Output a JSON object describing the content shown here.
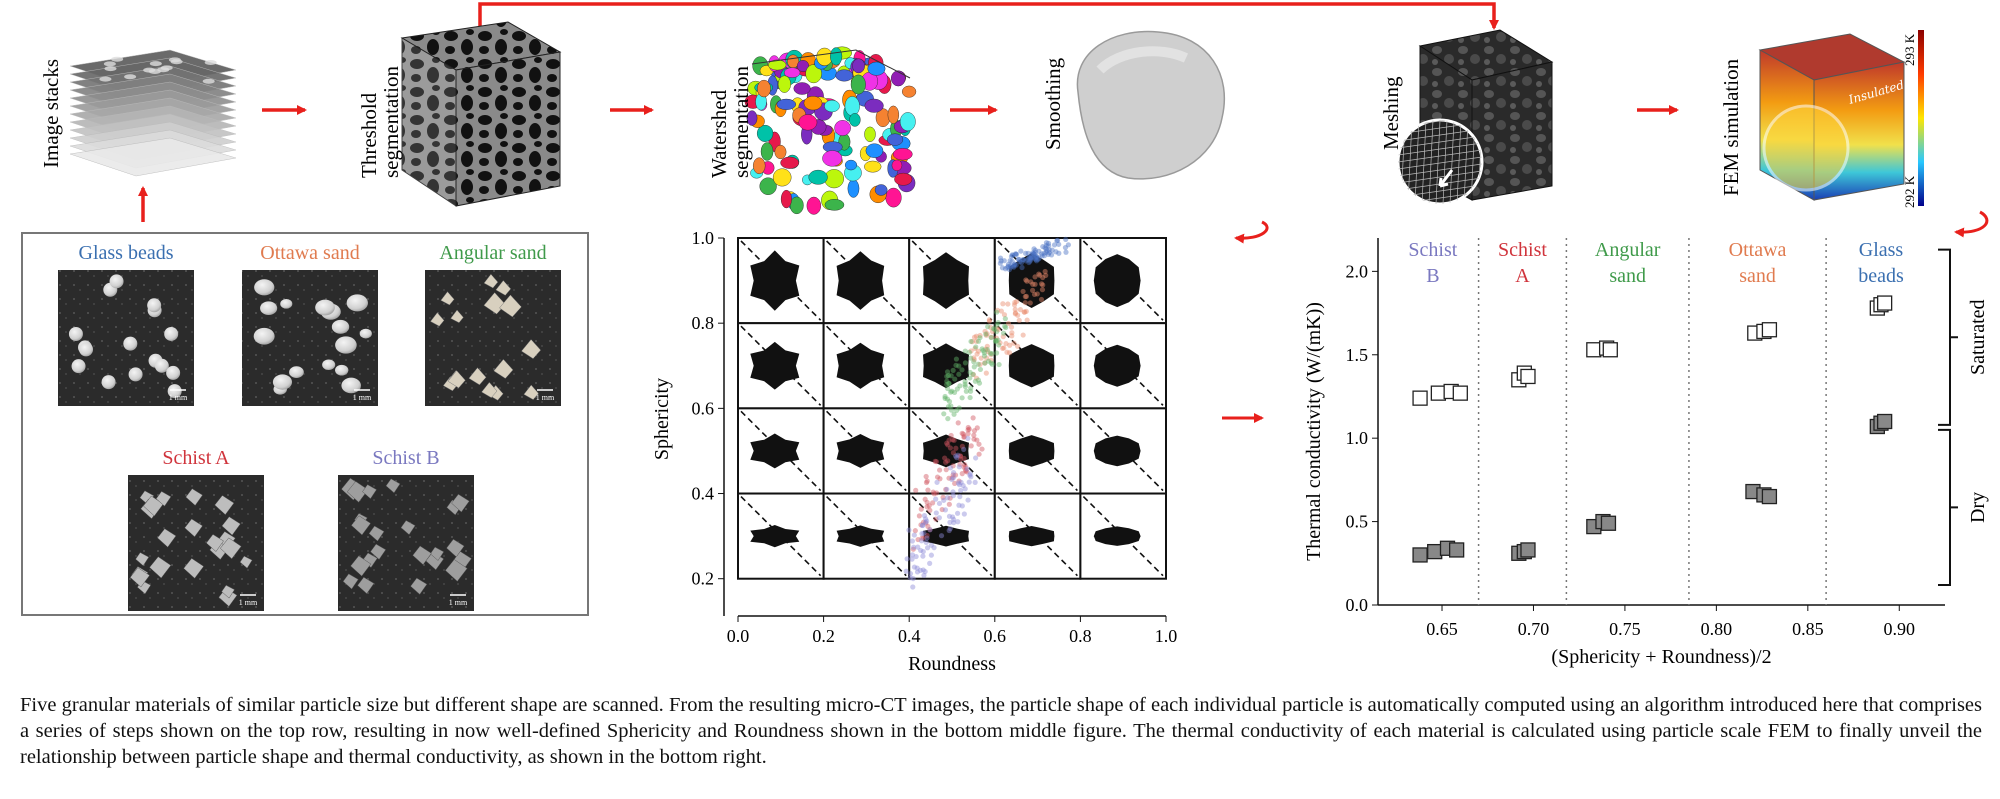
{
  "pipeline": {
    "steps": [
      {
        "id": "image-stacks",
        "label": "Image stacks"
      },
      {
        "id": "threshold",
        "label_lines": [
          "Threshold",
          "segmentation"
        ]
      },
      {
        "id": "watershed",
        "label_lines": [
          "Watershed",
          "segmentation"
        ]
      },
      {
        "id": "smoothing",
        "label": "Smoothing"
      },
      {
        "id": "meshing",
        "label": "Meshing"
      },
      {
        "id": "fem",
        "label": "FEM simulation"
      }
    ],
    "fem_colorbar": {
      "max_label": "293 K",
      "min_label": "292 K",
      "insulated_label": "Insulated"
    }
  },
  "materials_panel": {
    "items": [
      {
        "name": "Glass beads",
        "color": "#3a6fb0",
        "scale": "1 mm"
      },
      {
        "name": "Ottawa sand",
        "color": "#e07b4f",
        "scale": "1 mm"
      },
      {
        "name": "Angular sand",
        "color": "#3f9a4a",
        "scale": "1 mm"
      },
      {
        "name": "Schist A",
        "color": "#d0343c",
        "scale": "1 mm"
      },
      {
        "name": "Schist B",
        "color": "#7a78c0",
        "scale": "1 mm"
      }
    ]
  },
  "chart_data": [
    {
      "type": "scatter",
      "xlabel": "Roundness",
      "ylabel": "Sphericity",
      "xlim": [
        0.0,
        1.0
      ],
      "ylim": [
        0.15,
        1.0
      ],
      "xticks": [
        "0.0",
        "0.2",
        "0.4",
        "0.6",
        "0.8",
        "1.0"
      ],
      "yticks": [
        "0.2",
        "0.4",
        "0.6",
        "0.8",
        "1.0"
      ],
      "grid_cells": {
        "cols": 5,
        "rows": 4,
        "description_hidden": true
      },
      "series": [
        {
          "material": "Glass beads",
          "color": "#4a72c4",
          "x_range": [
            0.62,
            0.76
          ],
          "y_range": [
            0.92,
            1.0
          ]
        },
        {
          "material": "Ottawa sand",
          "color": "#e8896a",
          "x_range": [
            0.55,
            0.72
          ],
          "y_range": [
            0.65,
            0.95
          ]
        },
        {
          "material": "Angular sand",
          "color": "#5fb266",
          "x_range": [
            0.48,
            0.62
          ],
          "y_range": [
            0.55,
            0.85
          ]
        },
        {
          "material": "Schist A",
          "color": "#d05560",
          "x_range": [
            0.42,
            0.56
          ],
          "y_range": [
            0.25,
            0.65
          ]
        },
        {
          "material": "Schist B",
          "color": "#8c8ad6",
          "x_range": [
            0.4,
            0.55
          ],
          "y_range": [
            0.15,
            0.55
          ]
        }
      ]
    },
    {
      "type": "scatter",
      "xlabel": "(Sphericity + Roundness)/2",
      "ylabel": "Thermal conductivity (W/(mK))",
      "xlim": [
        0.615,
        0.925
      ],
      "ylim": [
        0.0,
        2.2
      ],
      "xticks": [
        "0.65",
        "0.70",
        "0.75",
        "0.80",
        "0.85",
        "0.90"
      ],
      "yticks": [
        "0.0",
        "0.5",
        "1.0",
        "1.5",
        "2.0"
      ],
      "dividers": [
        0.67,
        0.718,
        0.785,
        0.86
      ],
      "groups": [
        {
          "label_lines": [
            "Schist",
            "B"
          ],
          "color": "#7a78c0"
        },
        {
          "label_lines": [
            "Schist",
            "A"
          ],
          "color": "#d0343c"
        },
        {
          "label_lines": [
            "Angular",
            "sand"
          ],
          "color": "#3f9a4a"
        },
        {
          "label_lines": [
            "Ottawa",
            "sand"
          ],
          "color": "#e07b4f"
        },
        {
          "label_lines": [
            "Glass",
            "beads"
          ],
          "color": "#3a6fb0"
        }
      ],
      "series": [
        {
          "name": "Saturated",
          "marker": "open-square",
          "points": [
            [
              0.638,
              1.24
            ],
            [
              0.648,
              1.27
            ],
            [
              0.655,
              1.28
            ],
            [
              0.66,
              1.27
            ],
            [
              0.692,
              1.35
            ],
            [
              0.695,
              1.39
            ],
            [
              0.697,
              1.37
            ],
            [
              0.733,
              1.53
            ],
            [
              0.74,
              1.54
            ],
            [
              0.742,
              1.53
            ],
            [
              0.821,
              1.63
            ],
            [
              0.826,
              1.64
            ],
            [
              0.829,
              1.65
            ],
            [
              0.888,
              1.78
            ],
            [
              0.89,
              1.8
            ],
            [
              0.892,
              1.81
            ]
          ]
        },
        {
          "name": "Dry",
          "marker": "filled-square",
          "points": [
            [
              0.638,
              0.3
            ],
            [
              0.646,
              0.32
            ],
            [
              0.653,
              0.34
            ],
            [
              0.658,
              0.33
            ],
            [
              0.692,
              0.31
            ],
            [
              0.695,
              0.32
            ],
            [
              0.697,
              0.33
            ],
            [
              0.733,
              0.47
            ],
            [
              0.738,
              0.5
            ],
            [
              0.741,
              0.49
            ],
            [
              0.82,
              0.68
            ],
            [
              0.826,
              0.66
            ],
            [
              0.829,
              0.65
            ],
            [
              0.888,
              1.07
            ],
            [
              0.89,
              1.09
            ],
            [
              0.892,
              1.1
            ]
          ]
        }
      ],
      "brackets": [
        {
          "label": "Saturated",
          "y_range": [
            1.08,
            2.13
          ]
        },
        {
          "label": "Dry",
          "y_range": [
            0.12,
            1.05
          ]
        }
      ]
    }
  ],
  "caption": "Five granular materials of similar particle size but different shape are scanned. From the resulting micro-CT images, the particle shape of each individual particle is automatically computed using an algorithm introduced here that comprises a series of steps shown on the top row, resulting in now well-defined Sphericity and Roundness shown in the bottom middle figure. The thermal conductivity of each material is calculated using particle scale FEM to finally unveil the relationship between particle shape and thermal conductivity, as shown in the bottom right."
}
